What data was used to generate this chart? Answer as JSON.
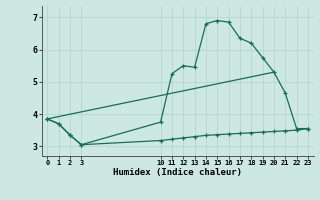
{
  "xlabel": "Humidex (Indice chaleur)",
  "bg_color": "#cde8e0",
  "line_color": "#1a6b5a",
  "grid_color": "#b8d8d0",
  "xlim": [
    -0.5,
    23.5
  ],
  "ylim": [
    2.7,
    7.35
  ],
  "xticks": [
    0,
    1,
    2,
    3,
    10,
    11,
    12,
    13,
    14,
    15,
    16,
    17,
    18,
    19,
    20,
    21,
    22,
    23
  ],
  "yticks": [
    3,
    4,
    5,
    6,
    7
  ],
  "series1_x": [
    0,
    1,
    2,
    3,
    10,
    11,
    12,
    13,
    14,
    15,
    16,
    17,
    18,
    19,
    20,
    21,
    22,
    23
  ],
  "series1_y": [
    3.85,
    3.7,
    3.35,
    3.05,
    3.75,
    5.25,
    5.5,
    5.45,
    6.8,
    6.9,
    6.85,
    6.35,
    6.2,
    5.75,
    5.3,
    4.65,
    3.55,
    3.55
  ],
  "series2_x": [
    0,
    1,
    2,
    3,
    10,
    11,
    12,
    13,
    14,
    15,
    16,
    17,
    18,
    19,
    20,
    21,
    22,
    23
  ],
  "series2_y": [
    3.85,
    3.7,
    3.35,
    3.05,
    3.18,
    3.22,
    3.26,
    3.3,
    3.34,
    3.36,
    3.38,
    3.4,
    3.42,
    3.44,
    3.46,
    3.48,
    3.5,
    3.55
  ],
  "series3_x": [
    0,
    20
  ],
  "series3_y": [
    3.85,
    5.3
  ]
}
